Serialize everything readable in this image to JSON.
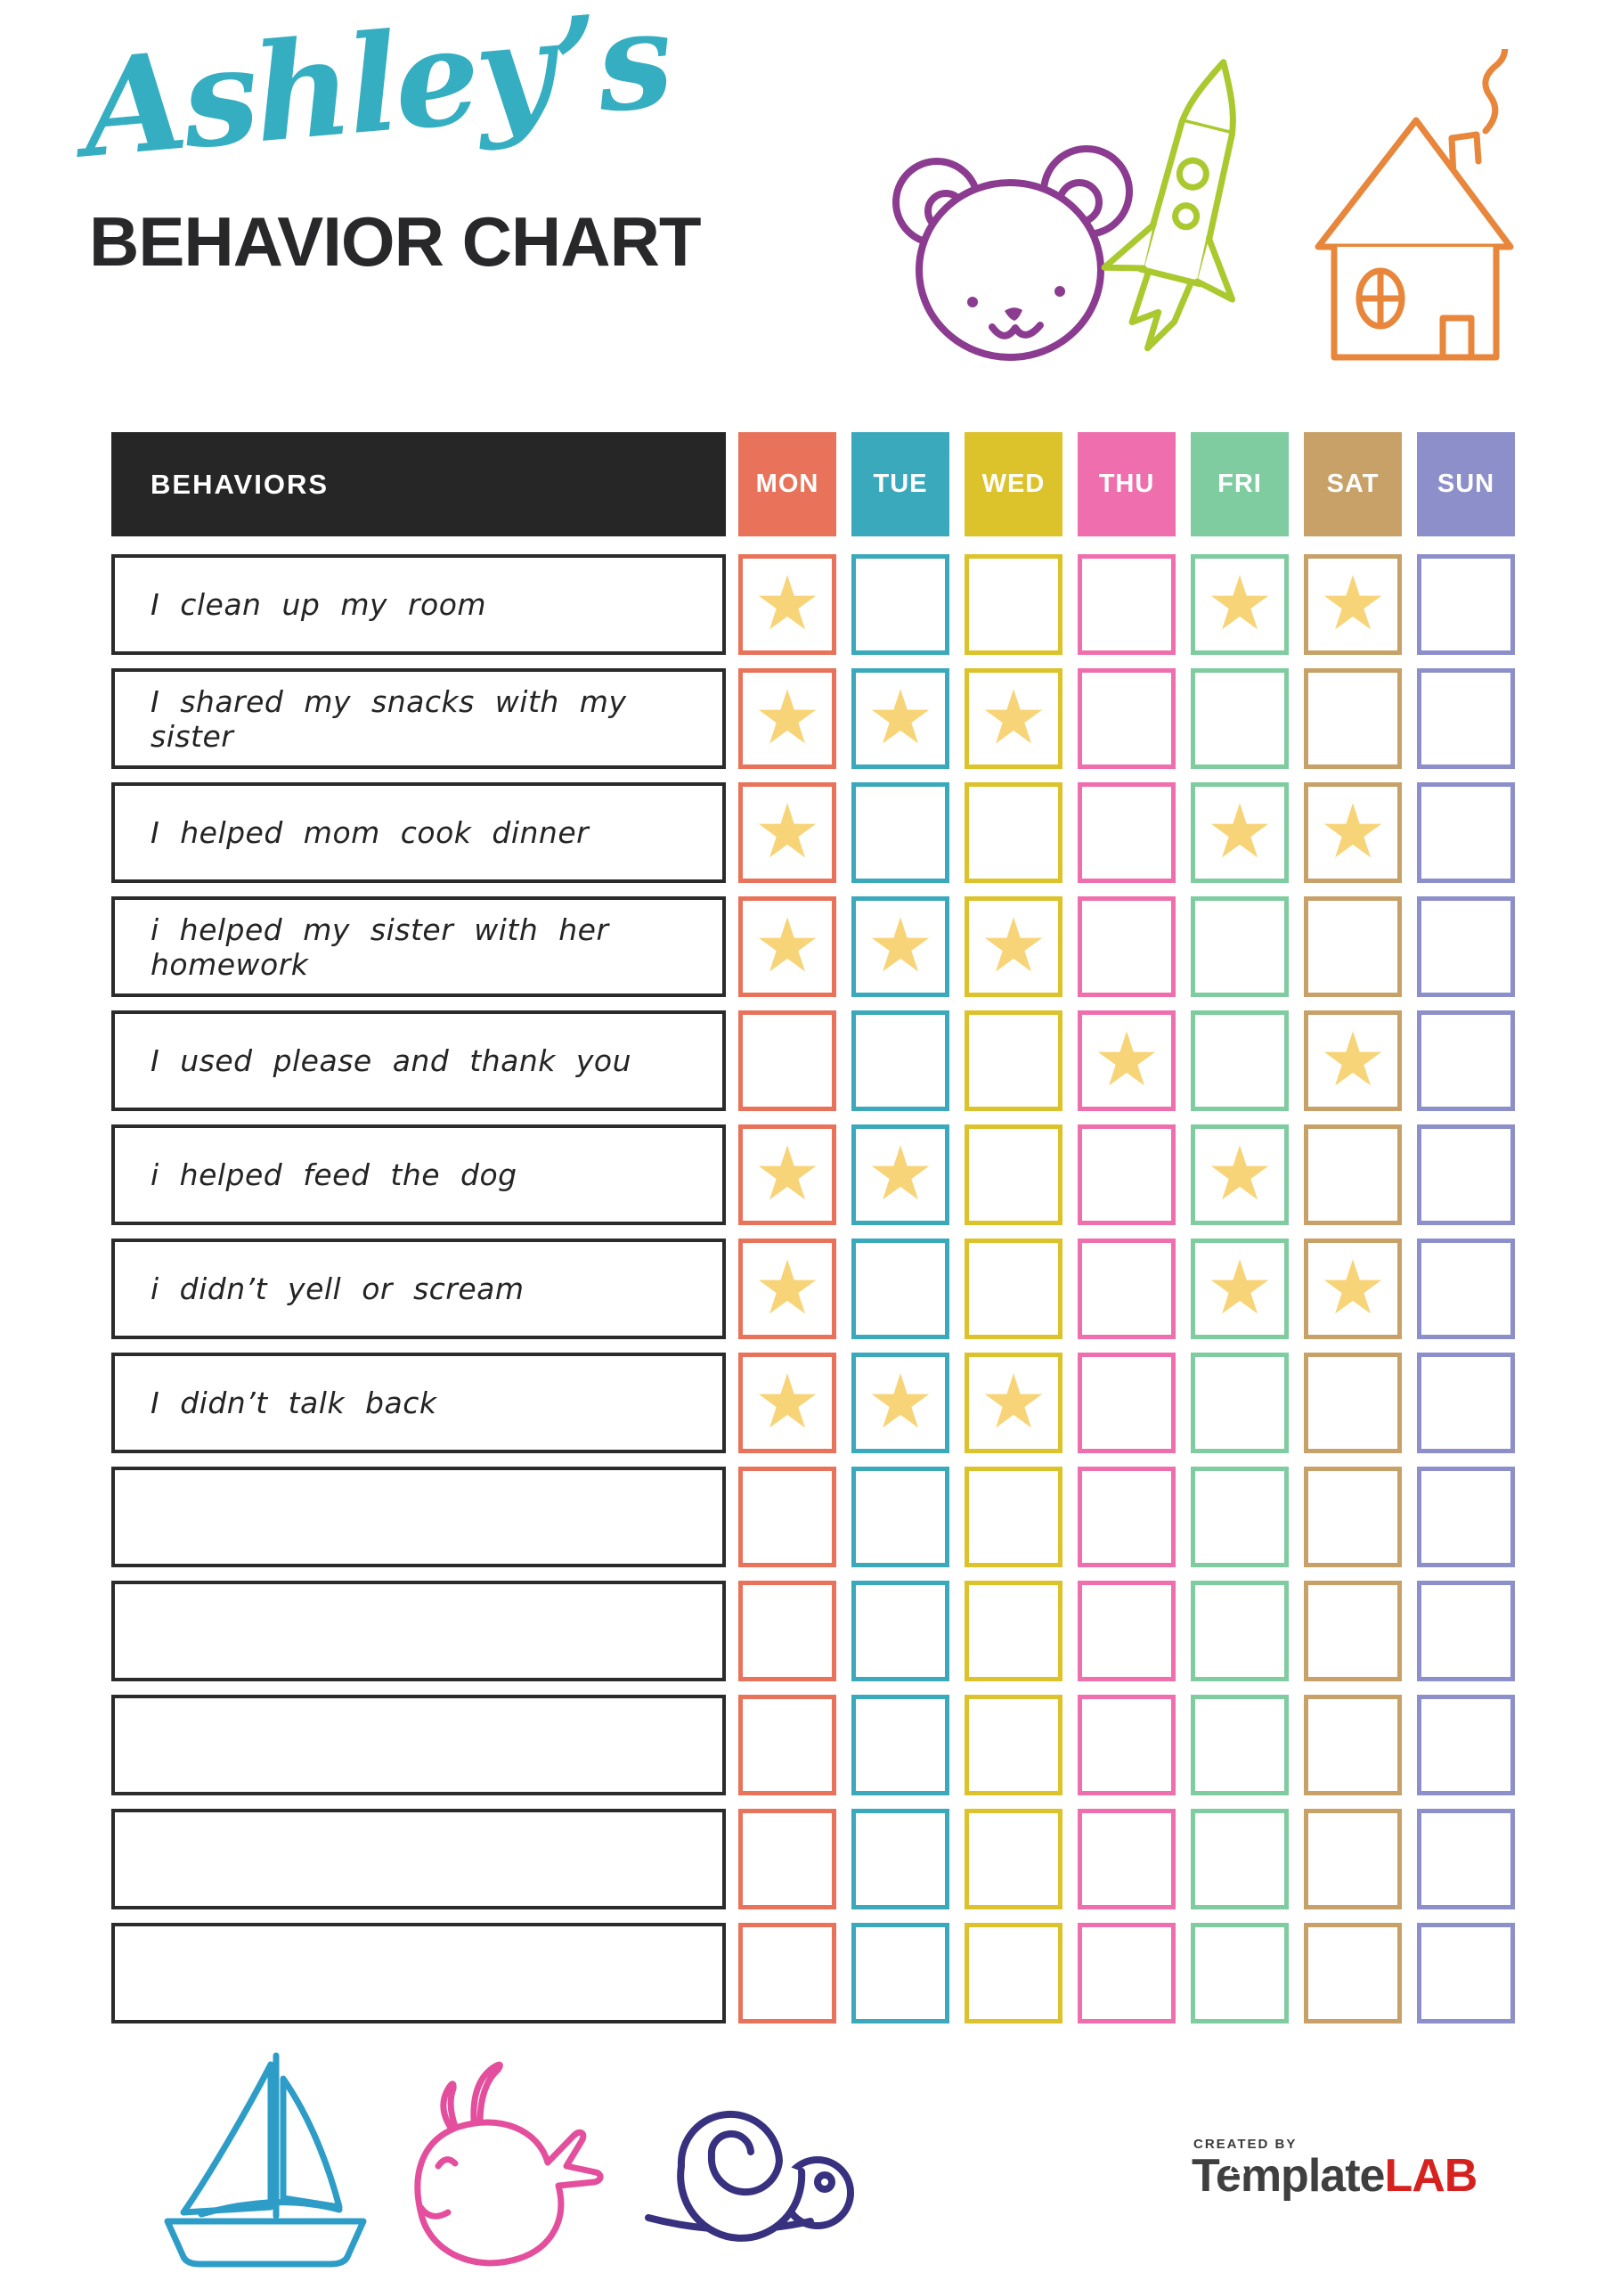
{
  "title": {
    "name": "Ashley’s",
    "heading": "BEHAVIOR CHART"
  },
  "table": {
    "behaviors_header": "BEHAVIORS",
    "days": [
      {
        "label": "MON",
        "color": "#e8735a"
      },
      {
        "label": "TUE",
        "color": "#3aa9bb"
      },
      {
        "label": "WED",
        "color": "#dcc32b"
      },
      {
        "label": "THU",
        "color": "#ef6fae"
      },
      {
        "label": "FRI",
        "color": "#7ecc9f"
      },
      {
        "label": "SAT",
        "color": "#c7a167"
      },
      {
        "label": "SUN",
        "color": "#8c8fc9"
      }
    ],
    "rows": [
      {
        "behavior": "I clean up my room",
        "stars": [
          "MON",
          "FRI",
          "SAT"
        ]
      },
      {
        "behavior": "I shared my snacks with my sister",
        "stars": [
          "MON",
          "TUE",
          "WED"
        ]
      },
      {
        "behavior": "I helped mom cook dinner",
        "stars": [
          "MON",
          "FRI",
          "SAT"
        ]
      },
      {
        "behavior": "i helped my sister with her homework",
        "stars": [
          "MON",
          "TUE",
          "WED"
        ]
      },
      {
        "behavior": "I used please and thank you",
        "stars": [
          "THU",
          "SAT"
        ]
      },
      {
        "behavior": "i helped feed the dog",
        "stars": [
          "MON",
          "TUE",
          "FRI"
        ]
      },
      {
        "behavior": "i didn’t yell or scream",
        "stars": [
          "MON",
          "FRI",
          "SAT"
        ]
      },
      {
        "behavior": "I didn’t talk back",
        "stars": [
          "MON",
          "TUE",
          "WED"
        ]
      },
      {
        "behavior": "",
        "stars": []
      },
      {
        "behavior": "",
        "stars": []
      },
      {
        "behavior": "",
        "stars": []
      },
      {
        "behavior": "",
        "stars": []
      },
      {
        "behavior": "",
        "stars": []
      }
    ]
  },
  "footer": {
    "created_by": "CREATED BY",
    "brand_1": "Template",
    "brand_2": "LAB"
  },
  "icons": {
    "star_glyph": "★",
    "top": [
      "bear-icon",
      "rocket-icon",
      "house-icon"
    ],
    "bottom": [
      "sailboat-icon",
      "whale-icon",
      "snail-icon"
    ]
  },
  "colors": {
    "title_accent": "#36aec1",
    "heading_text": "#28282a",
    "header_bg": "#262627",
    "star": "#f8d478",
    "behavior_border": "#2b2b2b",
    "logo_gray": "#3f3f3f",
    "logo_red": "#d6221f",
    "bear": "#8c3c90",
    "rocket": "#a9c92f",
    "house": "#e8863b",
    "sailboat": "#2d9dc8",
    "whale": "#e44f9d",
    "snail": "#37317f"
  }
}
